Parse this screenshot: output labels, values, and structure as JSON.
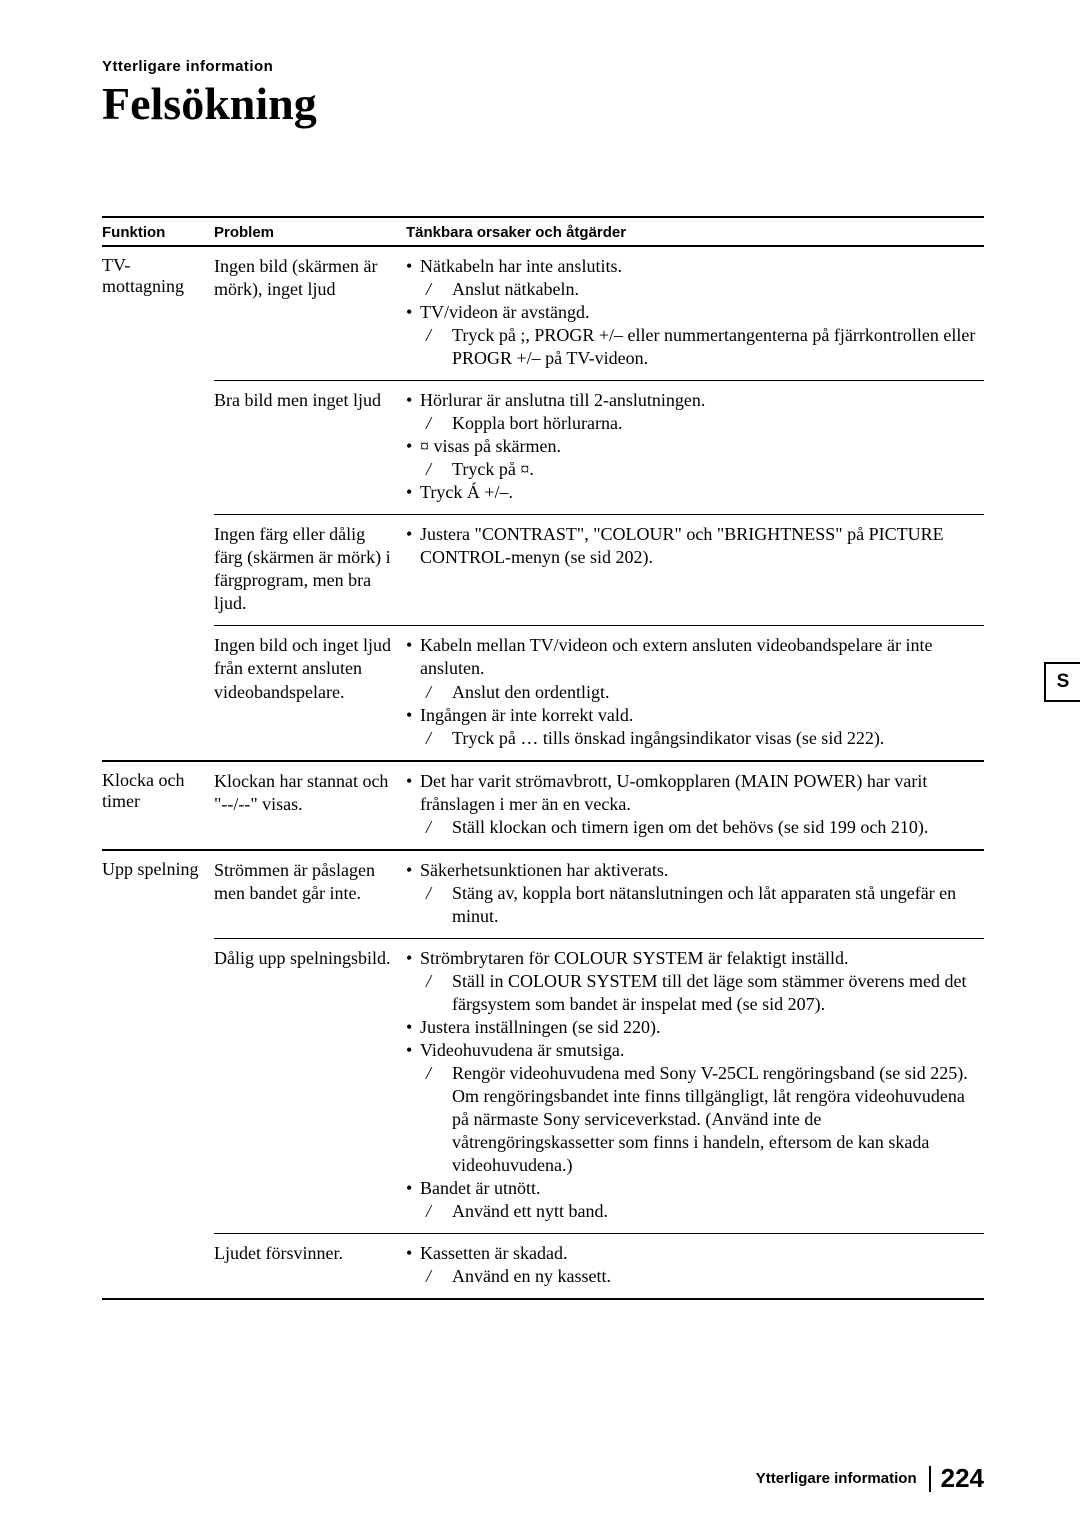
{
  "header": {
    "breadcrumb": "Ytterligare information",
    "title": "Felsökning"
  },
  "columns": {
    "funktion": "Funktion",
    "problem": "Problem",
    "causes": "Tänkbara orsaker och åtgärder"
  },
  "side_tab": "S",
  "footer": {
    "section": "Ytterligare information",
    "page": "224"
  },
  "bullet_glyph": "•",
  "slash_glyph": "/",
  "sections": [
    {
      "funktion": "TV-mottagning",
      "problems": [
        {
          "problem": "Ingen bild (skärmen är mörk), inget ljud",
          "items": [
            {
              "type": "cause",
              "text": "Nätkabeln har inte anslutits."
            },
            {
              "type": "action",
              "text": "Anslut nätkabeln."
            },
            {
              "type": "cause",
              "text": "TV/videon är avstängd."
            },
            {
              "type": "action",
              "text": "Tryck på ;, PROGR +/– eller nummertangenterna på fjärrkontrollen eller PROGR +/– på TV-videon."
            }
          ]
        },
        {
          "problem": "Bra bild men inget ljud",
          "items": [
            {
              "type": "cause",
              "text": "Hörlurar är anslutna till 2-anslutningen."
            },
            {
              "type": "action",
              "text": "Koppla bort hörlurarna."
            },
            {
              "type": "cause",
              "text": "¤ visas på skärmen."
            },
            {
              "type": "action",
              "text": "Tryck på ¤."
            },
            {
              "type": "cause",
              "text": " Tryck Á +/–."
            }
          ]
        },
        {
          "problem": "Ingen färg eller dålig färg (skärmen är mörk) i färgprogram, men bra ljud.",
          "items": [
            {
              "type": "cause",
              "text": "Justera \"CONTRAST\", \"COLOUR\" och \"BRIGHTNESS\" på PICTURE CONTROL-menyn (se sid 202)."
            }
          ]
        },
        {
          "problem": "Ingen bild och inget ljud från externt ansluten videobandspelare.",
          "items": [
            {
              "type": "cause",
              "text": "Kabeln mellan TV/videon och extern ansluten videobandspelare är inte ansluten."
            },
            {
              "type": "action",
              "text": "Anslut den ordentligt."
            },
            {
              "type": "cause",
              "text": "Ingången är inte korrekt vald."
            },
            {
              "type": "action",
              "text": "Tryck på … tills önskad ingångsindikator visas (se sid 222)."
            }
          ]
        }
      ]
    },
    {
      "funktion": "Klocka och timer",
      "problems": [
        {
          "problem": "Klockan har stannat och \"--/--\" visas.",
          "items": [
            {
              "type": "cause",
              "text": "Det har varit strömavbrott, U-omkopplaren (MAIN POWER) har varit frånslagen i mer än en vecka."
            },
            {
              "type": "action",
              "text": "Ställ klockan och timern igen om det behövs (se sid 199 och 210)."
            }
          ]
        }
      ]
    },
    {
      "funktion": "Upp spelning",
      "problems": [
        {
          "problem": "Strömmen är påslagen men bandet går inte.",
          "items": [
            {
              "type": "cause",
              "text": "Säkerhetsunktionen har aktiverats."
            },
            {
              "type": "action",
              "text": "Stäng av, koppla bort nätanslutningen och låt apparaten stå ungefär en minut."
            }
          ]
        },
        {
          "problem": "Dålig upp spelningsbild.",
          "items": [
            {
              "type": "cause",
              "text": "Strömbrytaren för COLOUR SYSTEM är felaktigt inställd."
            },
            {
              "type": "action",
              "text": "Ställ in COLOUR SYSTEM till det läge som stämmer överens med det färgsystem som bandet är inspelat med (se sid 207)."
            },
            {
              "type": "cause",
              "text": "Justera inställningen (se sid 220)."
            },
            {
              "type": "cause",
              "text": "Videohuvudena är smutsiga."
            },
            {
              "type": "action",
              "text": "Rengör videohuvudena med Sony V-25CL rengöringsband (se sid 225). Om rengöringsbandet inte finns tillgängligt, låt rengöra videohuvudena på närmaste Sony serviceverkstad. (Använd inte de våtrengöringskassetter som finns i handeln, eftersom de kan skada videohuvudena.)"
            },
            {
              "type": "cause",
              "text": "Bandet är utnött."
            },
            {
              "type": "action",
              "text": "Använd ett nytt band."
            }
          ]
        },
        {
          "problem": "Ljudet försvinner.",
          "items": [
            {
              "type": "cause",
              "text": "Kassetten är skadad."
            },
            {
              "type": "action",
              "text": "Använd en ny kassett."
            }
          ]
        }
      ]
    }
  ]
}
